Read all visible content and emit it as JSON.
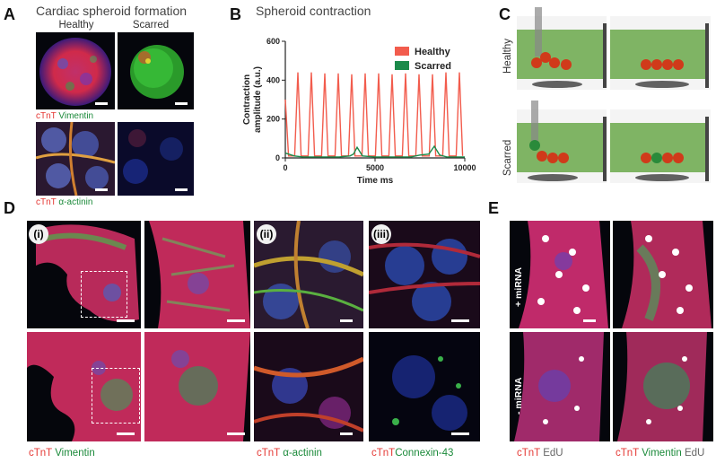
{
  "panel_a": {
    "letter": "A",
    "title": "Cardiac spheroid formation",
    "col_healthy": "Healthy",
    "col_scarred": "Scarred",
    "stain_top": {
      "c1": "cTnT",
      "c2": "Vimentin"
    },
    "stain_bottom": {
      "c1": "cTnT",
      "c2": "α-actinin"
    }
  },
  "panel_b": {
    "letter": "B",
    "title": "Spheroid contraction"
  },
  "chart_data": {
    "type": "line",
    "xlabel": "Time ms",
    "ylabel": "Contraction amplitude (a.u.)",
    "xlim": [
      0,
      10000
    ],
    "ylim": [
      0,
      600
    ],
    "xticks": [
      0,
      5000,
      10000
    ],
    "yticks": [
      0,
      200,
      400,
      600
    ],
    "legend_position": "top-right",
    "series": [
      {
        "name": "Healthy",
        "color": "#f25c4d",
        "peaks_x": [
          0,
          700,
          1450,
          2200,
          2950,
          3700,
          4450,
          5200,
          5950,
          6700,
          7450,
          8200,
          8950,
          9700
        ],
        "peaks_y": [
          300,
          440,
          440,
          435,
          435,
          430,
          435,
          435,
          430,
          435,
          430,
          430,
          440,
          440
        ],
        "baseline": 10
      },
      {
        "name": "Scarred",
        "color": "#1b8a4a",
        "x": [
          0,
          500,
          1000,
          2000,
          3000,
          3600,
          3800,
          4000,
          4300,
          5000,
          6000,
          7000,
          7500,
          8000,
          8300,
          8600,
          9000,
          10000
        ],
        "y": [
          25,
          10,
          5,
          5,
          5,
          10,
          20,
          55,
          10,
          5,
          5,
          5,
          15,
          20,
          60,
          15,
          5,
          5
        ]
      }
    ]
  },
  "panel_c": {
    "letter": "C",
    "row_healthy": "Healthy",
    "row_scarred": "Scarred"
  },
  "panel_d": {
    "letter": "D",
    "roman_i": "(i)",
    "roman_ii": "(ii)",
    "roman_iii": "(iii)",
    "stain_1": {
      "c1": "cTnT",
      "c2": "Vimentin"
    },
    "stain_2": {
      "c1": "cTnT",
      "c2": "α-actinin"
    },
    "stain_3": {
      "c1": "cTnT",
      "c2": "Connexin-43"
    }
  },
  "panel_e": {
    "letter": "E",
    "row_plus": "+ miRNA",
    "row_minus": "- miRNA",
    "stain_left": {
      "c1": "cTnT",
      "c2": "EdU"
    },
    "stain_right": {
      "c1": "cTnT",
      "c2": "Vimentin",
      "c3": "EdU"
    }
  }
}
